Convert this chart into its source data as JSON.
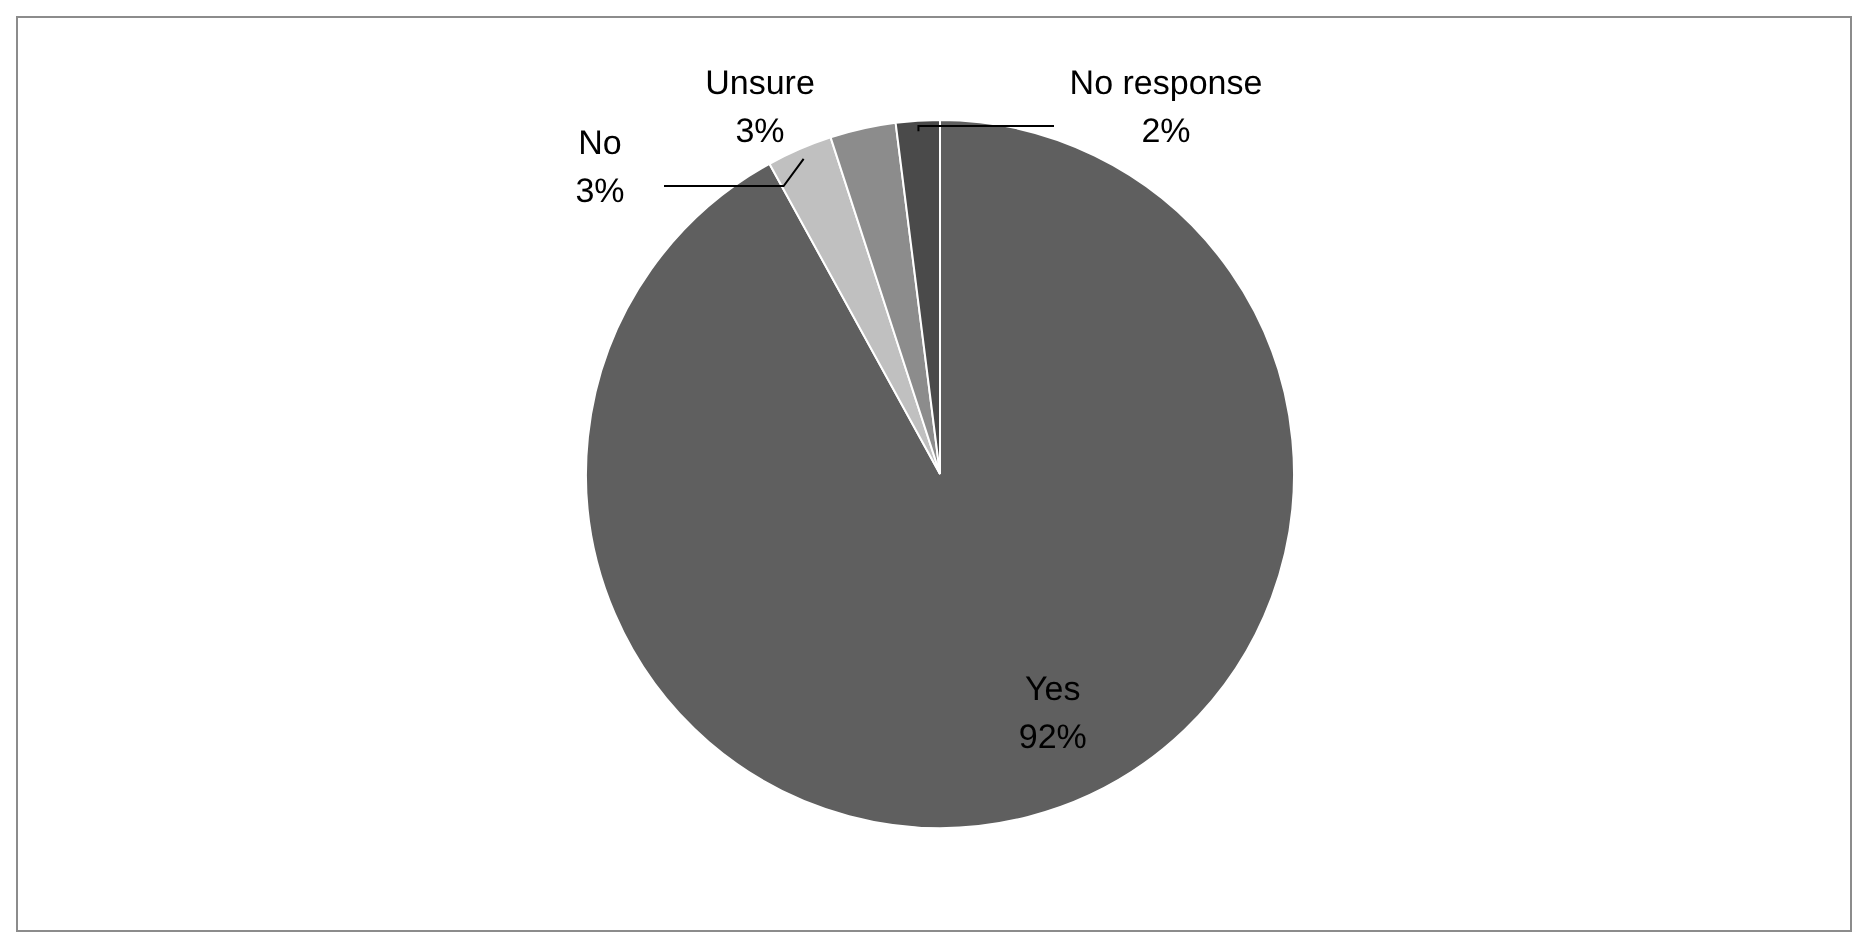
{
  "chart_data": {
    "type": "pie",
    "categories": [
      "Yes",
      "No",
      "Unsure",
      "No response"
    ],
    "values": [
      92,
      3,
      3,
      2
    ],
    "colors": [
      "#5f5f5f",
      "#c0c0c0",
      "#8c8c8c",
      "#4a4a4a"
    ],
    "value_labels": [
      "92%",
      "3%",
      "3%",
      "2%"
    ]
  }
}
